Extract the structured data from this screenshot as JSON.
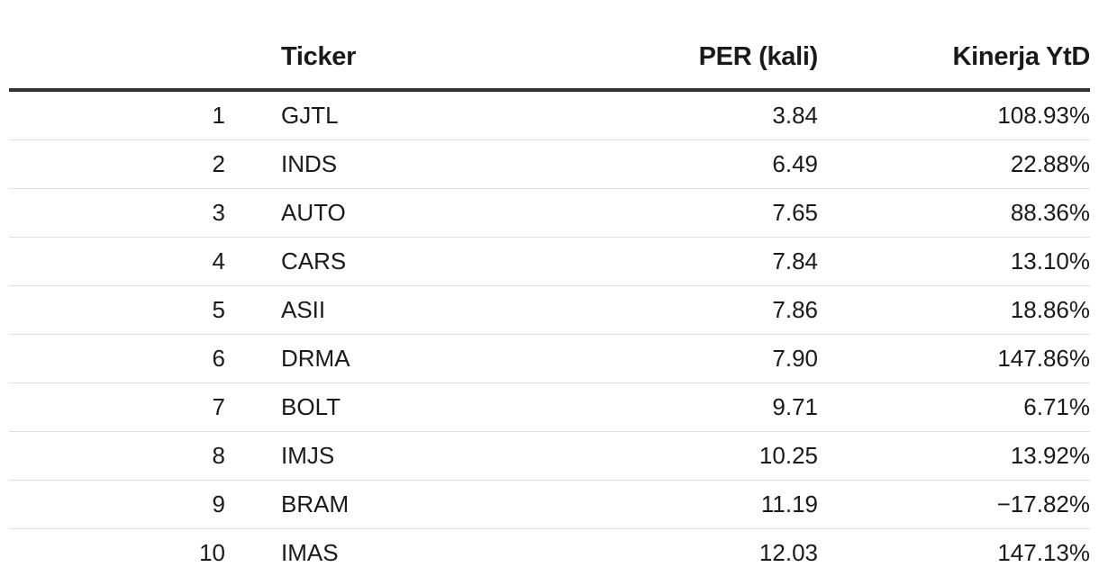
{
  "chart_data": {
    "type": "table",
    "columns": {
      "rank": "",
      "ticker": "Ticker",
      "per": "PER (kali)",
      "ytd": "Kinerja YtD"
    },
    "rows": [
      {
        "rank": "1",
        "ticker": "GJTL",
        "per": "3.84",
        "ytd": "108.93%"
      },
      {
        "rank": "2",
        "ticker": "INDS",
        "per": "6.49",
        "ytd": "22.88%"
      },
      {
        "rank": "3",
        "ticker": "AUTO",
        "per": "7.65",
        "ytd": "88.36%"
      },
      {
        "rank": "4",
        "ticker": "CARS",
        "per": "7.84",
        "ytd": "13.10%"
      },
      {
        "rank": "5",
        "ticker": "ASII",
        "per": "7.86",
        "ytd": "18.86%"
      },
      {
        "rank": "6",
        "ticker": "DRMA",
        "per": "7.90",
        "ytd": "147.86%"
      },
      {
        "rank": "7",
        "ticker": "BOLT",
        "per": "9.71",
        "ytd": "6.71%"
      },
      {
        "rank": "8",
        "ticker": "IMJS",
        "per": "10.25",
        "ytd": "13.92%"
      },
      {
        "rank": "9",
        "ticker": "BRAM",
        "per": "11.19",
        "ytd": "−17.82%"
      },
      {
        "rank": "10",
        "ticker": "IMAS",
        "per": "12.03",
        "ytd": "147.13%"
      }
    ]
  }
}
